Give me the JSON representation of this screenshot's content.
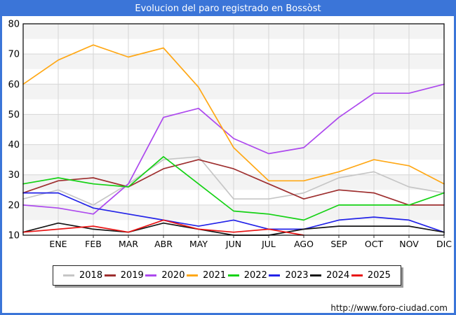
{
  "footer": {
    "url": "http://www.foro-ciudad.com"
  },
  "chart_data": {
    "type": "line",
    "title": "Evolucion del paro registrado en Bossòst",
    "xlabel": "",
    "ylabel": "",
    "x_categories": [
      "ENE",
      "FEB",
      "MAR",
      "ABR",
      "MAY",
      "JUN",
      "JUL",
      "AGO",
      "SEP",
      "OCT",
      "NOV",
      "DIC"
    ],
    "ylim": [
      10,
      80
    ],
    "yticks": [
      80,
      70,
      60,
      50,
      40,
      30,
      20,
      10
    ],
    "grid": true,
    "legend_position": "bottom",
    "note": "Each yearly line begins at the left axis with the previous December value, then has one point per labeled month.",
    "series": [
      {
        "name": "2018",
        "color": "#c6c6c6",
        "prev_dec": 22,
        "values": [
          25,
          20,
          27,
          35,
          36,
          22,
          22,
          24,
          29,
          31,
          26,
          24
        ]
      },
      {
        "name": "2019",
        "color": "#9e2f2f",
        "prev_dec": 24,
        "values": [
          28,
          29,
          26,
          32,
          35,
          32,
          27,
          22,
          25,
          24,
          20,
          20
        ]
      },
      {
        "name": "2020",
        "color": "#ad49ee",
        "prev_dec": 20,
        "values": [
          19,
          17,
          27,
          49,
          52,
          42,
          37,
          39,
          49,
          57,
          57,
          60
        ]
      },
      {
        "name": "2021",
        "color": "#ffa816",
        "prev_dec": 60,
        "values": [
          68,
          73,
          69,
          72,
          59,
          39,
          28,
          28,
          31,
          35,
          33,
          27
        ]
      },
      {
        "name": "2022",
        "color": "#15d215",
        "prev_dec": 27,
        "values": [
          29,
          27,
          26,
          36,
          27,
          18,
          17,
          15,
          20,
          20,
          20,
          24
        ]
      },
      {
        "name": "2023",
        "color": "#2323e8",
        "prev_dec": 24,
        "values": [
          24,
          19,
          17,
          15,
          13,
          15,
          12,
          12,
          15,
          16,
          15,
          11
        ]
      },
      {
        "name": "2024",
        "color": "#161616",
        "prev_dec": 11,
        "values": [
          14,
          12,
          11,
          14,
          12,
          10,
          10,
          12,
          13,
          13,
          13,
          11
        ]
      },
      {
        "name": "2025",
        "color": "#e81414",
        "prev_dec": 11,
        "values": [
          12,
          13,
          11,
          15,
          12,
          11,
          12,
          10
        ]
      }
    ]
  }
}
